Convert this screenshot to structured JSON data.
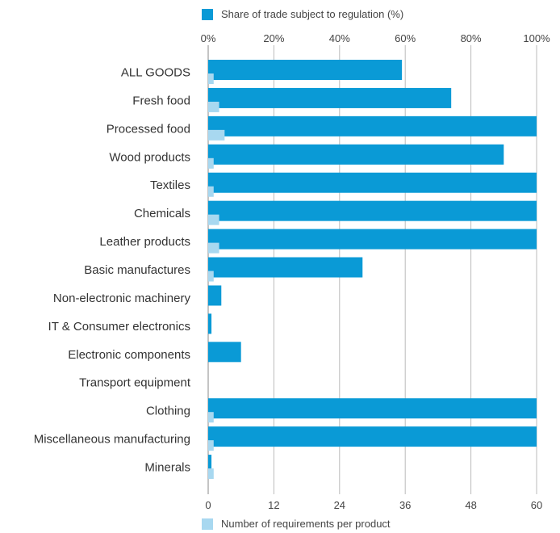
{
  "chart_data": {
    "type": "bar",
    "categories": [
      "ALL GOODS",
      "Fresh food",
      "Processed food",
      "Wood products",
      "Textiles",
      "Chemicals",
      "Leather products",
      "Basic manufactures",
      "Non-electronic machinery",
      "IT & Consumer electronics",
      "Electronic components",
      "Transport equipment",
      "Clothing",
      "Miscellaneous manufacturing",
      "Minerals"
    ],
    "series": [
      {
        "name": "Share of trade subject to regulation (%)",
        "axis": "top",
        "color": "#0a9ad6",
        "values": [
          59,
          74,
          100,
          90,
          100,
          100,
          100,
          47,
          4,
          1,
          10,
          0,
          100,
          100,
          1
        ]
      },
      {
        "name": "Number of requirements per product",
        "axis": "bottom",
        "color": "#a8d8f0",
        "values": [
          1,
          2,
          3,
          1,
          1,
          2,
          2,
          1,
          0,
          0,
          0,
          0,
          1,
          1,
          1
        ]
      }
    ],
    "x_top": {
      "min": 0,
      "max": 100,
      "ticks": [
        "0%",
        "20%",
        "40%",
        "60%",
        "80%",
        "100%"
      ]
    },
    "x_bottom": {
      "min": 0,
      "max": 60,
      "ticks": [
        "0",
        "12",
        "24",
        "36",
        "48",
        "60"
      ]
    },
    "grid": true,
    "legend": [
      "top",
      "bottom"
    ]
  },
  "colors": {
    "primary": "#0a9ad6",
    "secondary": "#a8d8f0",
    "grid": "#bbbbbb"
  }
}
